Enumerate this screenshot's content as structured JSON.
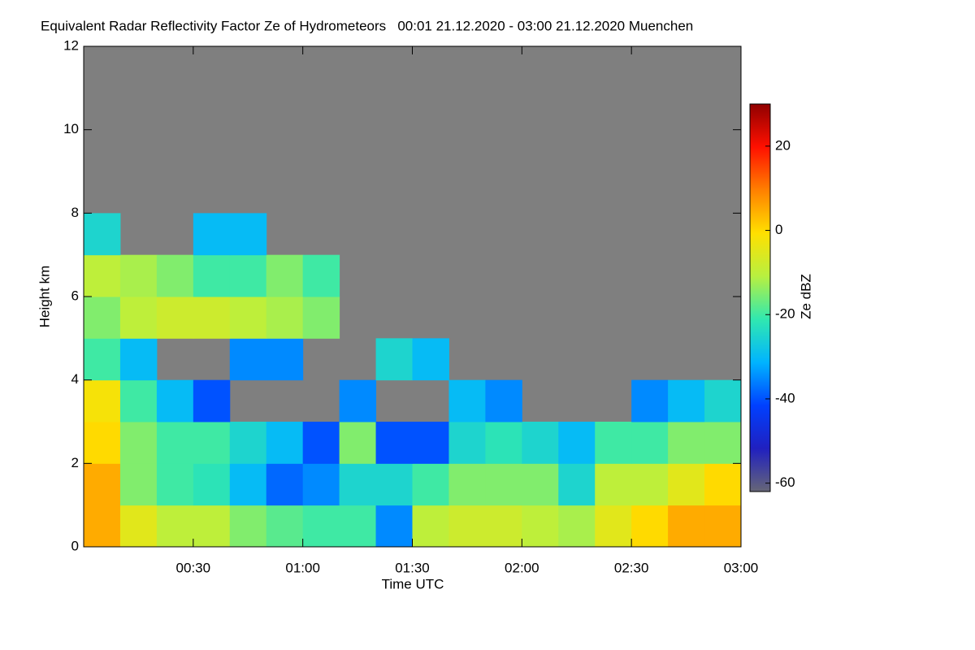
{
  "chart_data": {
    "type": "heatmap",
    "title": "Equivalent Radar Reflectivity Factor Ze of Hydrometeors   00:01 21.12.2020 - 03:00 21.12.2020 Muenchen",
    "xlabel": "Time UTC",
    "ylabel": "Height km",
    "colorbar_label": "Ze dBZ",
    "xlim": [
      0,
      180
    ],
    "ylim": [
      0,
      12
    ],
    "xticks": [
      {
        "value": 30,
        "label": "00:30"
      },
      {
        "value": 60,
        "label": "01:00"
      },
      {
        "value": 90,
        "label": "01:30"
      },
      {
        "value": 120,
        "label": "02:00"
      },
      {
        "value": 150,
        "label": "02:30"
      },
      {
        "value": 180,
        "label": "03:00"
      }
    ],
    "yticks": [
      0,
      2,
      4,
      6,
      8,
      10,
      12
    ],
    "clim": [
      -62,
      30
    ],
    "cticks": [
      -60,
      -40,
      -20,
      0,
      20
    ],
    "colormap": [
      "#666677",
      "#2020c0",
      "#0040ff",
      "#00b4ff",
      "#30e8b0",
      "#b8f040",
      "#ffe000",
      "#ff8000",
      "#ff1000",
      "#900000"
    ],
    "background": "#7f7f7f",
    "xbins": [
      0,
      10,
      20,
      30,
      40,
      50,
      60,
      70,
      80,
      90,
      100,
      110,
      120,
      130,
      140,
      150,
      160,
      170,
      180
    ],
    "ybins": [
      0,
      1,
      2,
      3,
      4,
      5,
      6,
      7,
      8
    ],
    "values": [
      [
        5,
        -5,
        -10,
        -10,
        -15,
        -18,
        -20,
        -20,
        -35,
        -10,
        -8,
        -8,
        -10,
        -12,
        -5,
        0,
        5,
        5
      ],
      [
        5,
        -15,
        -20,
        -22,
        -30,
        -38,
        -35,
        -25,
        -25,
        -20,
        -15,
        -15,
        -15,
        -25,
        -10,
        -10,
        -5,
        0
      ],
      [
        0,
        -15,
        -20,
        -20,
        -25,
        -30,
        -40,
        -15,
        -40,
        -40,
        -25,
        -22,
        -25,
        -30,
        -20,
        -20,
        -15,
        -15
      ],
      [
        -2,
        -20,
        -30,
        -40,
        null,
        null,
        null,
        -35,
        null,
        null,
        -30,
        -35,
        null,
        null,
        null,
        -35,
        -30,
        -25
      ],
      [
        -20,
        -30,
        null,
        null,
        -35,
        -35,
        null,
        null,
        -25,
        -30,
        null,
        null,
        null,
        null,
        null,
        null,
        null,
        null
      ],
      [
        -15,
        -10,
        -8,
        -8,
        -10,
        -12,
        -15,
        null,
        null,
        null,
        null,
        null,
        null,
        null,
        null,
        null,
        null,
        null
      ],
      [
        -10,
        -12,
        -15,
        -20,
        -20,
        -15,
        -20,
        null,
        null,
        null,
        null,
        null,
        null,
        null,
        null,
        null,
        null,
        null
      ],
      [
        -25,
        null,
        null,
        -30,
        -30,
        null,
        null,
        null,
        null,
        null,
        null,
        null,
        null,
        null,
        null,
        null,
        null,
        null
      ]
    ]
  }
}
